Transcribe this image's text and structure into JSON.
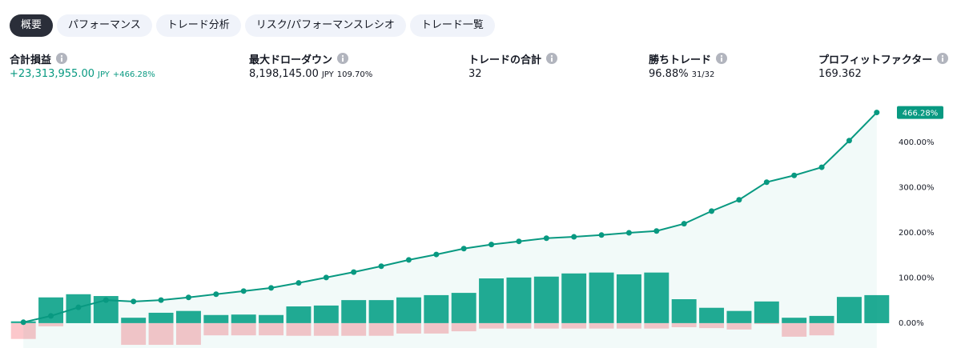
{
  "tabs": [
    "概要",
    "パフォーマンス",
    "トレード分析",
    "リスク/パフォーマンスレシオ",
    "トレード一覧"
  ],
  "stats": [
    {
      "label": "合計損益",
      "value": "+23,313,955.00",
      "unit": "JPY",
      "pct": "+466.28%",
      "positive": true
    },
    {
      "label": "最大ドローダウン",
      "value": "8,198,145.00",
      "unit": "JPY",
      "pct": "109.70%"
    },
    {
      "label": "トレードの合計",
      "value": "32"
    },
    {
      "label": "勝ちトレード",
      "value": "96.88%",
      "pct": "31/32"
    },
    {
      "label": "プロフィットファクター",
      "value": "169.362"
    }
  ],
  "chart_data": {
    "type": "line",
    "x": [
      1,
      2,
      3,
      4,
      5,
      6,
      7,
      8,
      9,
      10,
      11,
      12,
      13,
      14,
      15,
      16,
      17,
      18,
      19,
      20,
      21,
      22,
      23,
      24,
      25,
      26,
      27,
      28,
      29,
      30,
      31,
      32
    ],
    "xlim": [
      0.5,
      32.5
    ],
    "ylim": [
      -55,
      485
    ],
    "yticks": [
      {
        "value": 0,
        "label": "0.00%"
      },
      {
        "value": 100,
        "label": "100.00%"
      },
      {
        "value": 200,
        "label": "200.00%"
      },
      {
        "value": 300,
        "label": "300.00%"
      },
      {
        "value": 400,
        "label": "400.00%"
      }
    ],
    "grid": false,
    "series": [
      {
        "type": "line",
        "color": "#089981",
        "values": [
          2,
          16,
          35,
          51,
          48,
          51,
          57,
          64,
          71,
          78,
          89,
          101,
          113,
          126,
          140,
          152,
          165,
          174,
          181,
          188,
          191,
          195,
          200,
          204,
          220,
          248,
          273,
          312,
          327,
          345,
          404,
          466.28
        ],
        "value_labels": [
          null,
          null,
          null,
          null,
          null,
          null,
          null,
          null,
          null,
          null,
          null,
          null,
          null,
          null,
          null,
          null,
          null,
          null,
          null,
          null,
          null,
          null,
          null,
          null,
          null,
          null,
          null,
          null,
          null,
          null,
          null,
          "466.28%"
        ]
      },
      {
        "type": "bar",
        "color": "#22ab94",
        "values": [
          4,
          57,
          64,
          60,
          12,
          23,
          27,
          18,
          19,
          18,
          37,
          39,
          51,
          51,
          57,
          62,
          67,
          99,
          101,
          103,
          110,
          112,
          108,
          112,
          53,
          34,
          27,
          48,
          12,
          16,
          58,
          62
        ]
      },
      {
        "type": "bar",
        "color": "#fcc7cb",
        "values": [
          -35,
          -7,
          0,
          0,
          -48,
          -48,
          -48,
          -27,
          -27,
          -27,
          -28,
          -28,
          -28,
          -28,
          -23,
          -23,
          -18,
          -12,
          -12,
          -12,
          -12,
          -12,
          -12,
          -12,
          -9,
          -11,
          -14,
          -2,
          -30,
          -27,
          0,
          0
        ]
      }
    ]
  }
}
